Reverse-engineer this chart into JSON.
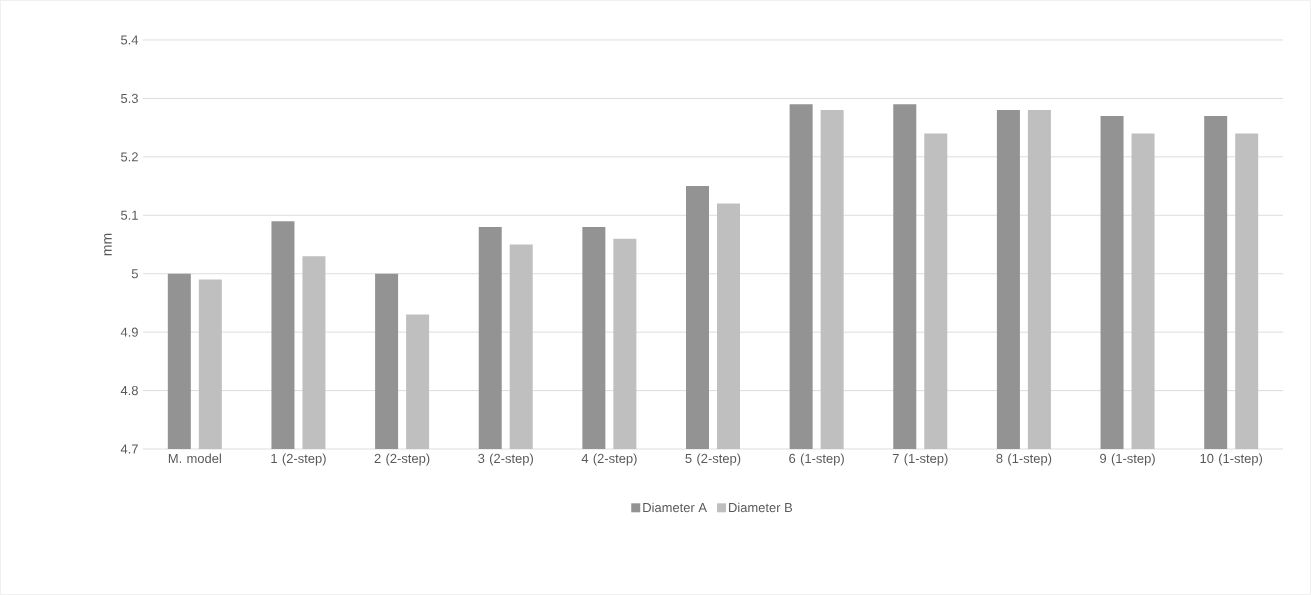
{
  "chart_data": {
    "type": "bar",
    "ylabel": "mm",
    "categories": [
      "M. model",
      "1 (2-step)",
      "2 (2-step)",
      "3 (2-step)",
      "4 (2-step)",
      "5 (2-step)",
      "6 (1-step)",
      "7 (1-step)",
      "8 (1-step)",
      "9 (1-step)",
      "10 (1-step)"
    ],
    "series": [
      {
        "name": "Diameter A",
        "color": "#939393",
        "values": [
          5.0,
          5.09,
          5.0,
          5.08,
          5.08,
          5.15,
          5.29,
          5.29,
          5.28,
          5.27,
          5.27
        ]
      },
      {
        "name": "Diameter B",
        "color": "#bfbfbf",
        "values": [
          4.99,
          5.03,
          4.93,
          5.05,
          5.06,
          5.12,
          5.28,
          5.24,
          5.28,
          5.24,
          5.24
        ]
      }
    ],
    "ylim": [
      4.7,
      5.4
    ],
    "yticks": [
      4.7,
      4.8,
      4.9,
      5,
      5.1,
      5.2,
      5.3,
      5.4
    ],
    "grid": "y",
    "legend": "bottom"
  }
}
